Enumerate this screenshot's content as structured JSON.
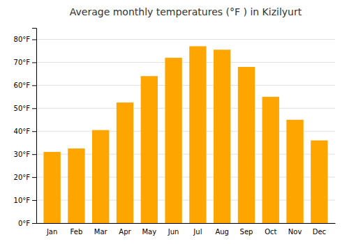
{
  "chart_data": {
    "type": "bar",
    "title": "Average monthly temperatures (°F ) in Kizilyurt",
    "categories": [
      "Jan",
      "Feb",
      "Mar",
      "Apr",
      "May",
      "Jun",
      "Jul",
      "Aug",
      "Sep",
      "Oct",
      "Nov",
      "Dec"
    ],
    "values": [
      31,
      32.5,
      40.5,
      52.5,
      64,
      72,
      77,
      75.5,
      68,
      55,
      45,
      36
    ],
    "color": "#FFA500",
    "ylim": [
      0,
      85
    ],
    "yticks": [
      {
        "value": 0,
        "label": "0°F"
      },
      {
        "value": 10,
        "label": "10°F"
      },
      {
        "value": 20,
        "label": "20°F"
      },
      {
        "value": 30,
        "label": "30°F"
      },
      {
        "value": 40,
        "label": "40°F"
      },
      {
        "value": 50,
        "label": "50°F"
      },
      {
        "value": 60,
        "label": "60°F"
      },
      {
        "value": 70,
        "label": "70°F"
      },
      {
        "value": 80,
        "label": "80°F"
      }
    ],
    "grid": true
  }
}
